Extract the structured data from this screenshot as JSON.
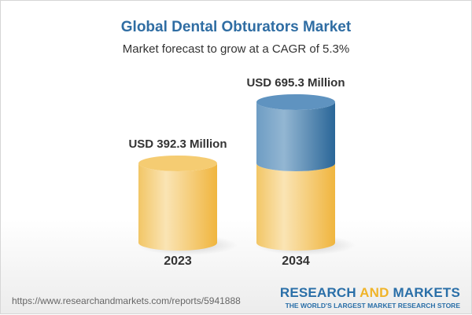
{
  "chart_data": {
    "type": "bar",
    "style": "3d-cylinder",
    "title": "Global Dental Obturators Market",
    "subtitle": "Market forecast to grow at a CAGR of 5.3%",
    "categories": [
      "2023",
      "2034"
    ],
    "values": [
      392.3,
      695.3
    ],
    "data_labels": [
      "USD 392.3 Million",
      "USD 695.3 Million"
    ],
    "unit": "USD Million",
    "grid": false,
    "colors": {
      "base": "#f3c35a",
      "growth": "#5289b8",
      "title": "#2f6da3"
    }
  },
  "footer": {
    "url": "https://www.researchandmarkets.com/reports/5941888",
    "logo_part1": "RESEARCH ",
    "logo_part2": "AND",
    "logo_part3": " MARKETS",
    "tagline": "THE WORLD'S LARGEST MARKET RESEARCH STORE"
  }
}
